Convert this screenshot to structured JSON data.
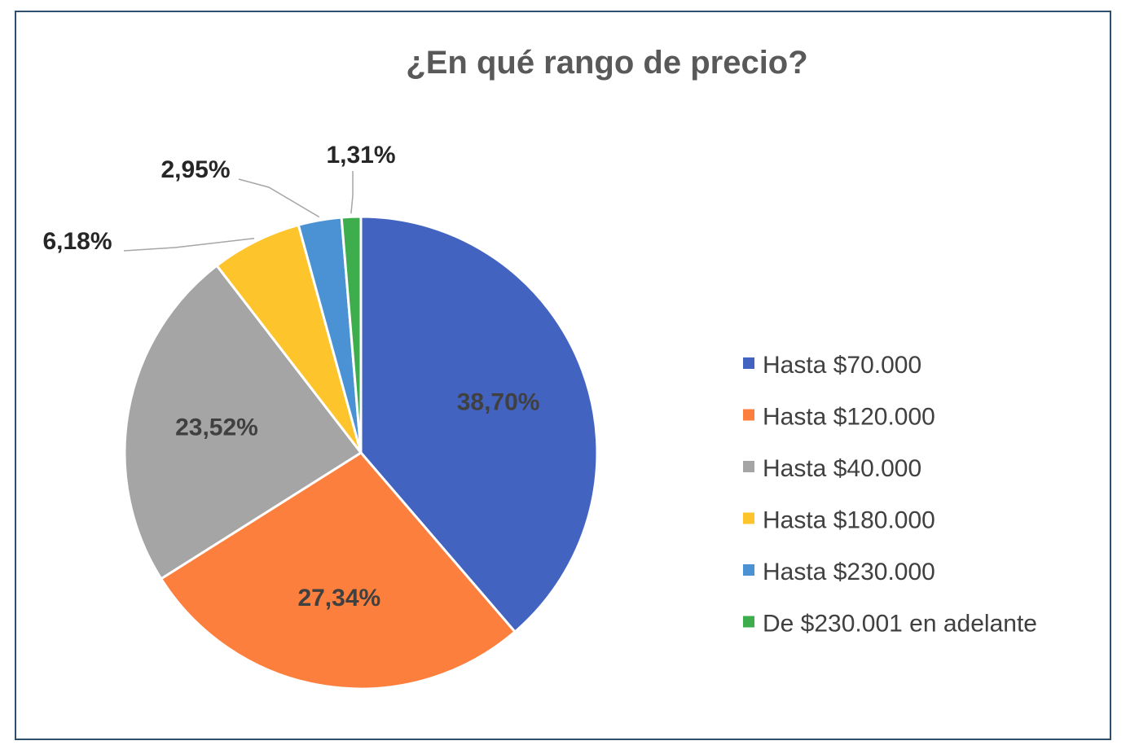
{
  "chart_data": {
    "type": "pie",
    "title": "¿En qué rango de precio?",
    "categories": [
      "Hasta $70.000",
      "Hasta $120.000",
      "Hasta $40.000",
      "Hasta $180.000",
      "Hasta $230.000",
      "De $230.001 en adelante"
    ],
    "values": [
      38.7,
      27.34,
      23.52,
      6.18,
      2.95,
      1.31
    ],
    "data_labels": [
      "38,70%",
      "27,34%",
      "23,52%",
      "6,18%",
      "2,95%",
      "1,31%"
    ],
    "colors": [
      "#4363c1",
      "#fd7f3d",
      "#a5a5a5",
      "#fec42c",
      "#4a92d4",
      "#3ead4e"
    ],
    "legend_position": "right",
    "start_angle": "top, clockwise"
  }
}
